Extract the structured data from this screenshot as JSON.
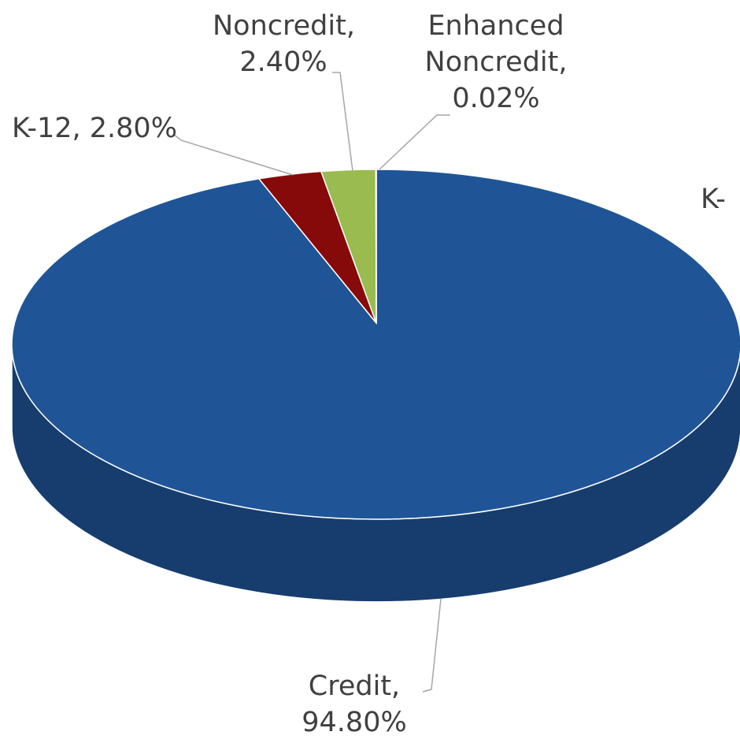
{
  "chart_data": {
    "type": "pie3d",
    "categories": [
      "Credit,",
      "K-12,",
      "Noncredit,",
      "Enhanced Noncredit,"
    ],
    "values": [
      94.8,
      2.8,
      2.4,
      0.02
    ],
    "value_labels": [
      "94.80%",
      "2.80%",
      "2.40%",
      "0.02%"
    ],
    "colors": [
      "#1f5597",
      "#870a0a",
      "#99bb4f",
      "#4bacc6"
    ],
    "annotations": [
      "K-"
    ]
  }
}
